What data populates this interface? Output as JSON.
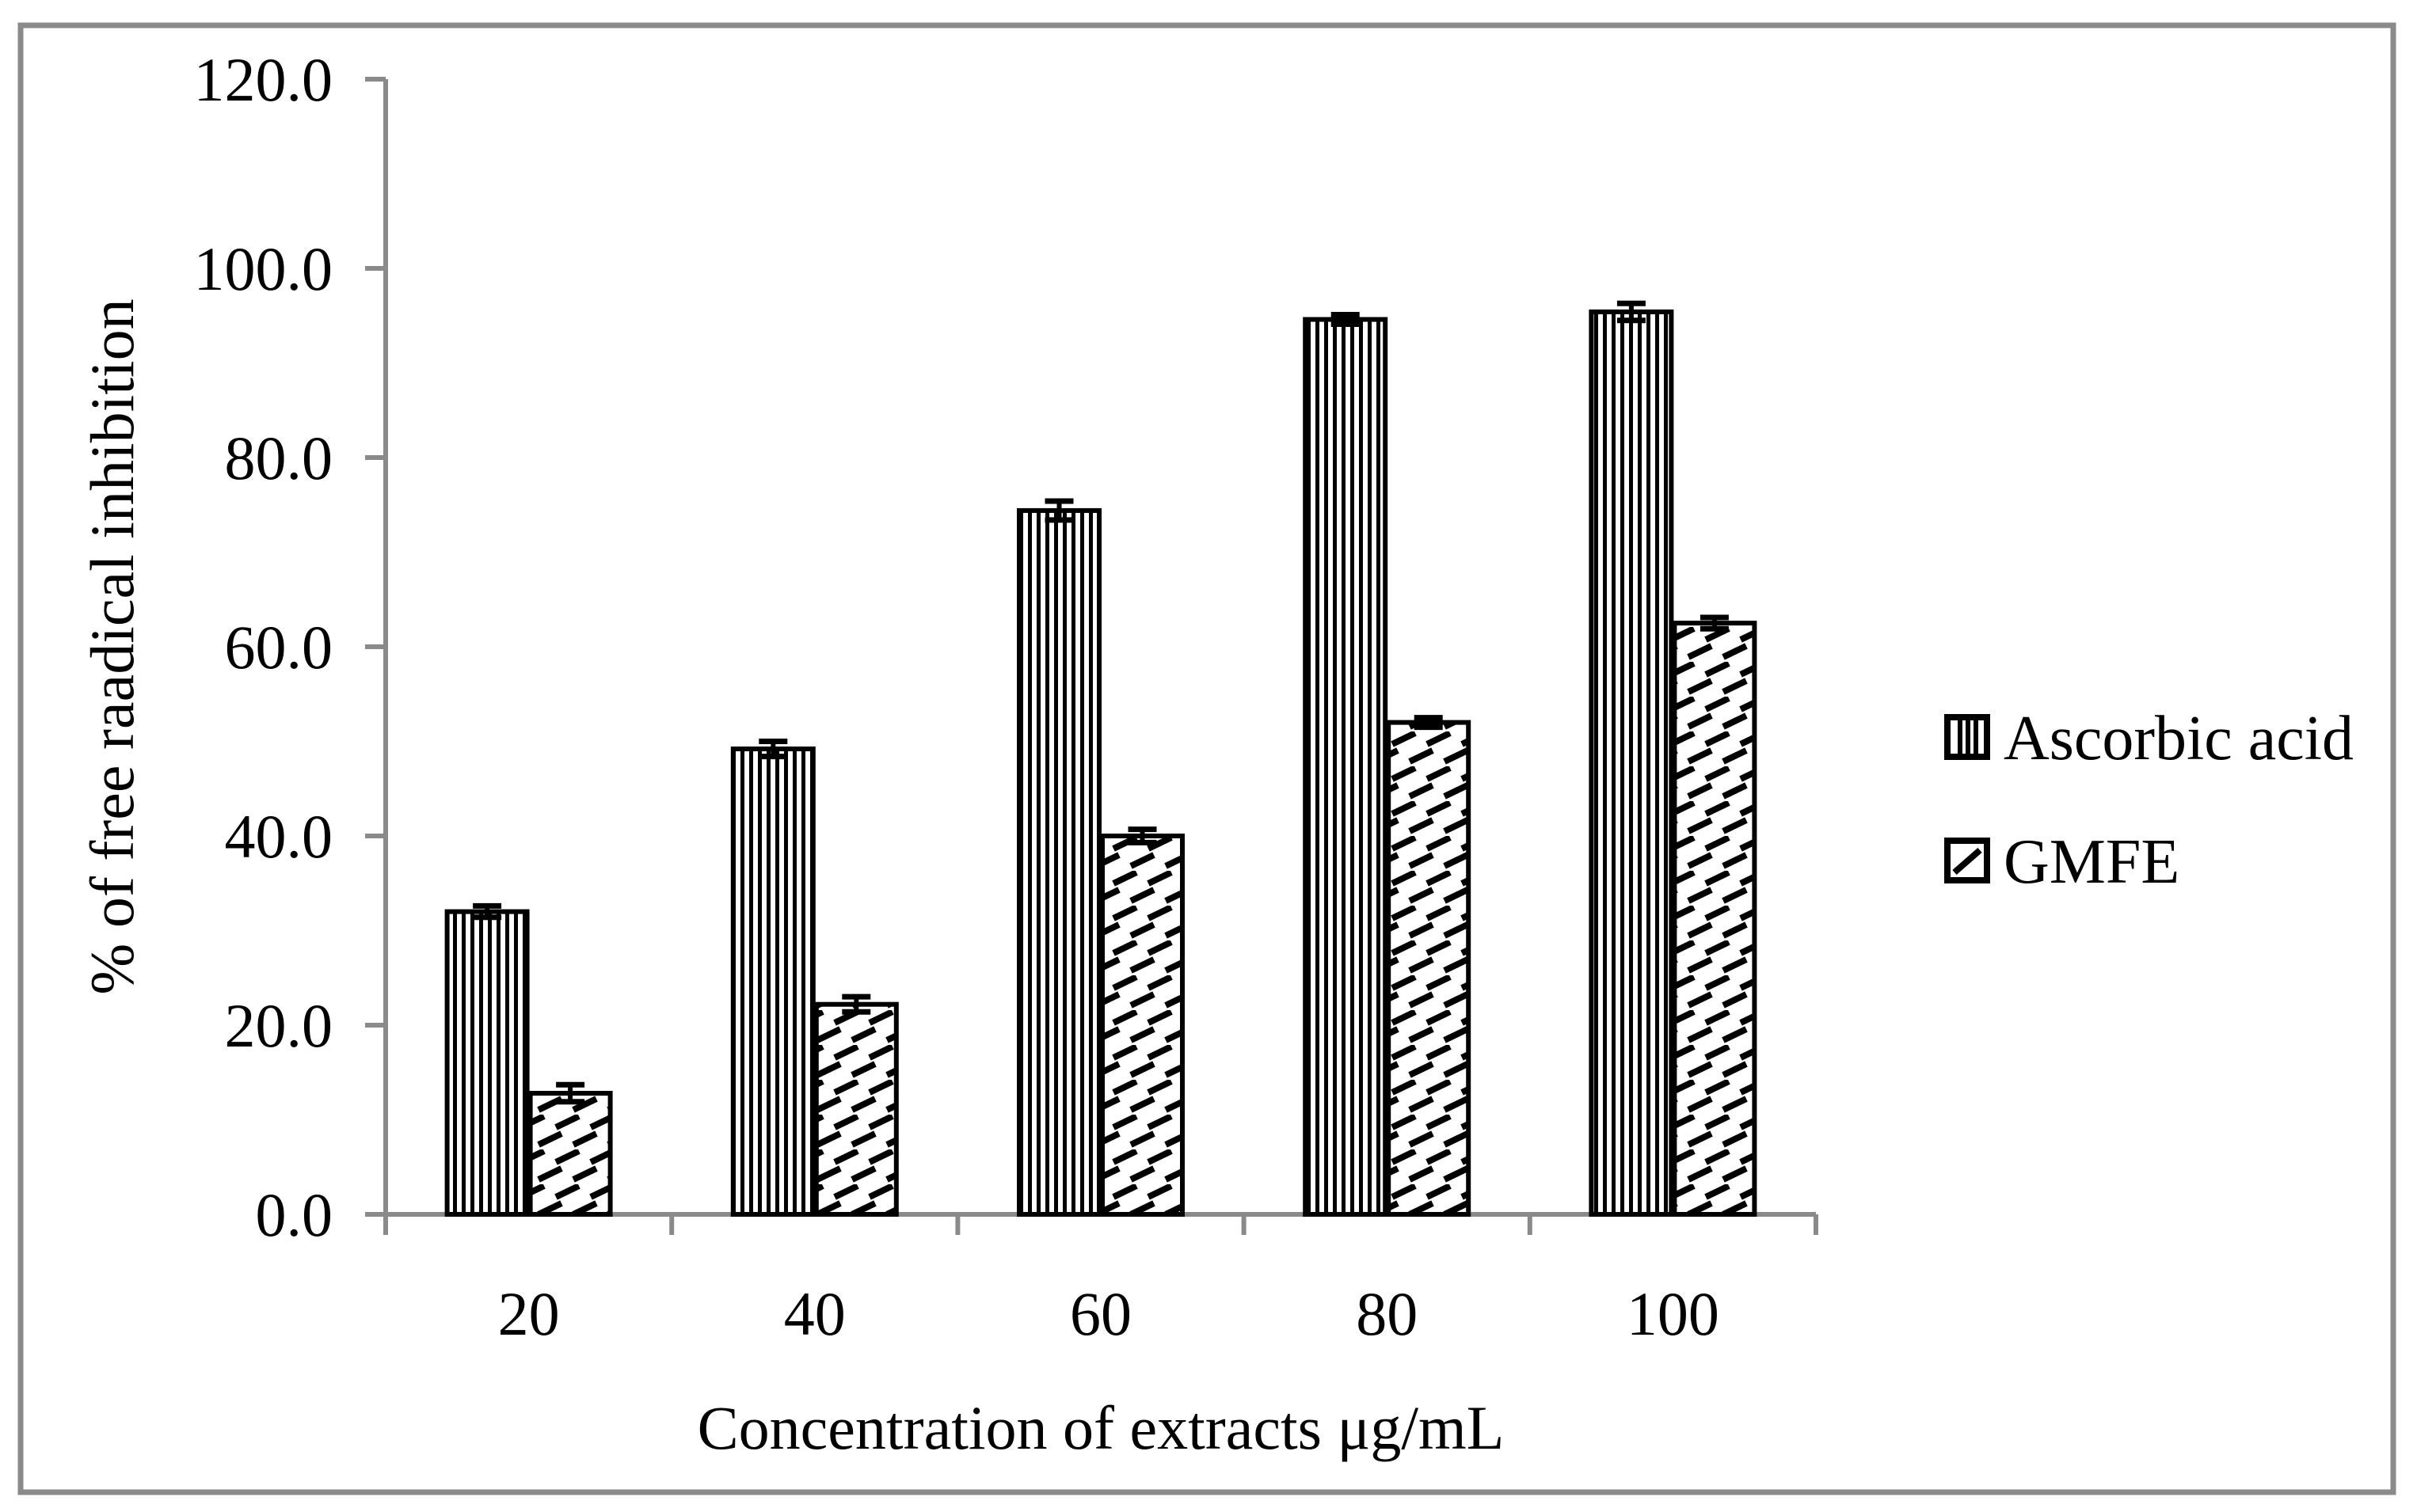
{
  "figure": {
    "background": "#ffffff",
    "border_color": "#8a8a8a",
    "axis_color": "#8a8a8a",
    "bar_outline_color": "#000000",
    "text_color": "#000000"
  },
  "chart_data": {
    "type": "bar",
    "title": "",
    "xlabel": "Concentration of extracts μg/mL",
    "ylabel": "% of free raadical inhibition",
    "categories": [
      "20",
      "40",
      "60",
      "80",
      "100"
    ],
    "series": [
      {
        "name": "Ascorbic acid",
        "pattern": "vertical-stripes",
        "values": [
          32.0,
          49.2,
          74.4,
          94.6,
          95.4
        ],
        "errors": [
          0.6,
          0.8,
          1.0,
          0.5,
          0.9
        ]
      },
      {
        "name": "GMFE",
        "pattern": "diagonal-dashes",
        "values": [
          12.8,
          22.2,
          40.0,
          52.0,
          62.5
        ],
        "errors": [
          0.9,
          0.8,
          0.7,
          0.5,
          0.6
        ]
      }
    ],
    "ylim": [
      0,
      120
    ],
    "ytick_step": 20,
    "ytick_labels": [
      "0.0",
      "20.0",
      "40.0",
      "60.0",
      "80.0",
      "100.0",
      "120.0"
    ],
    "grid": false,
    "legend_position": "right",
    "error_bars": true
  }
}
